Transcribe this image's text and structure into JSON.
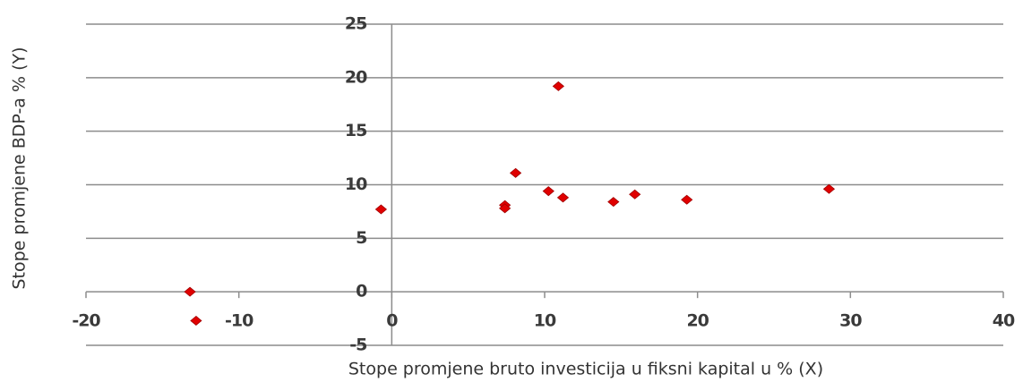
{
  "chart_data": {
    "type": "scatter",
    "xlabel": "Stope promjene bruto investicija u fiksni kapital u % (X)",
    "ylabel": "Stope promjene BDP-a % (Y)",
    "x": [
      -13.2,
      -12.8,
      -0.7,
      7.4,
      7.4,
      8.1,
      10.25,
      10.9,
      11.2,
      14.5,
      15.9,
      19.3,
      28.6
    ],
    "values": [
      0,
      -2.7,
      7.7,
      8.1,
      7.8,
      11.1,
      9.4,
      19.2,
      8.8,
      8.4,
      9.1,
      8.6,
      9.6
    ],
    "color": "#e00000",
    "xlim": [
      -20,
      40
    ],
    "xticks": [
      -20,
      -10,
      0,
      10,
      20,
      30,
      40
    ],
    "ylim": [
      -5,
      25
    ],
    "yticks": [
      -5,
      0,
      5,
      10,
      15,
      20,
      25
    ],
    "grid": true
  }
}
